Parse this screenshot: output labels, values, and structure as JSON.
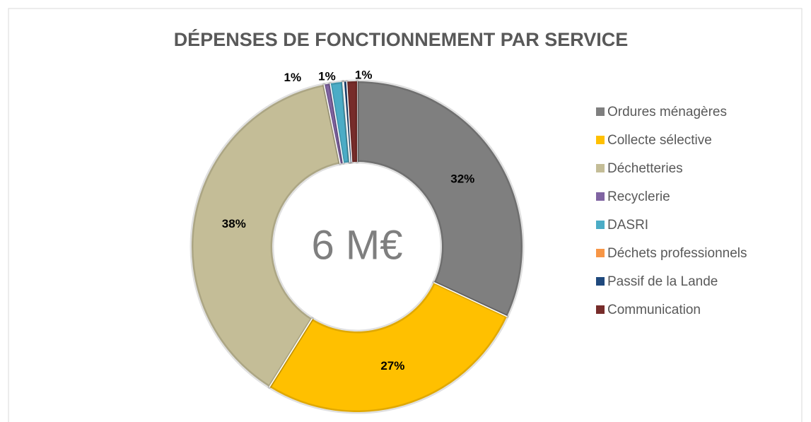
{
  "chart_data": {
    "type": "donut",
    "title": "DÉPENSES DE FONCTIONNEMENT PAR SERVICE",
    "center_label": "6 M€",
    "categories": [
      "Ordures ménagères",
      "Collecte sélective",
      "Déchetteries",
      "Recyclerie",
      "DASRI",
      "Déchets professionnels",
      "Passif de la Lande",
      "Communication"
    ],
    "values": [
      32,
      27,
      38,
      0.6,
      1.2,
      0.1,
      0.3,
      1
    ],
    "value_labels": [
      "32%",
      "27%",
      "38%",
      "1%",
      "1%",
      null,
      null,
      "1%"
    ],
    "colors": [
      "#7f7f7f",
      "#ffc000",
      "#c4bd97",
      "#8064a2",
      "#4bacc6",
      "#f79646",
      "#1f497d",
      "#772c2a"
    ],
    "legend": "right"
  }
}
